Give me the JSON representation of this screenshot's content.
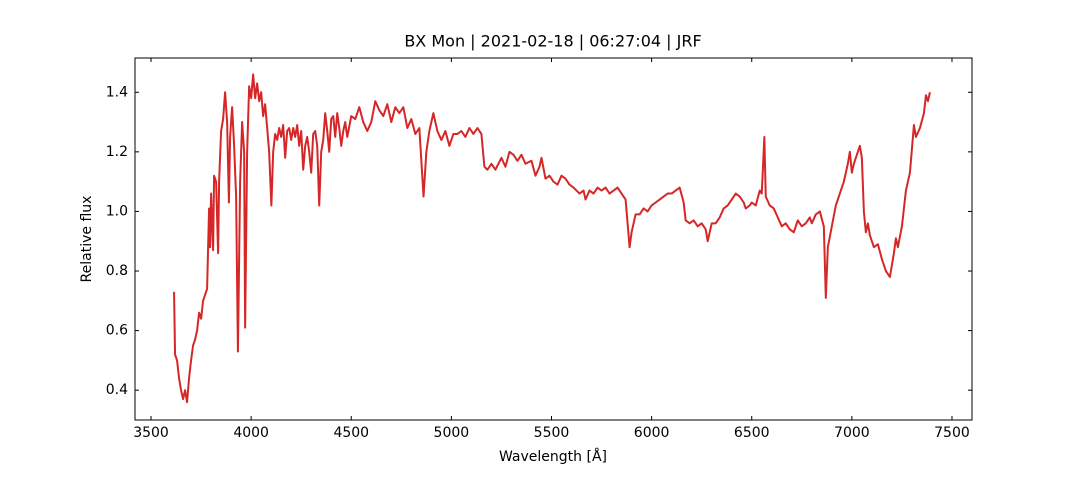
{
  "chart_data": {
    "type": "line",
    "title": "BX Mon | 2021-02-18 | 06:27:04 | JRF",
    "xlabel": "Wavelength [Å]",
    "ylabel": "Relative flux",
    "color": "#d62728",
    "xlim": [
      3420,
      7600
    ],
    "ylim": [
      0.3,
      1.515
    ],
    "xticks": [
      3500,
      4000,
      4500,
      5000,
      5500,
      6000,
      6500,
      7000,
      7500
    ],
    "yticks": [
      0.4,
      0.6,
      0.8,
      {
        "value": 1,
        "label": "1.0"
      },
      1.2,
      1.4
    ],
    "grid": false,
    "x": [
      3615,
      3620,
      3630,
      3640,
      3650,
      3660,
      3670,
      3680,
      3690,
      3700,
      3710,
      3720,
      3730,
      3740,
      3750,
      3760,
      3770,
      3780,
      3790,
      3795,
      3800,
      3810,
      3815,
      3825,
      3835,
      3840,
      3850,
      3860,
      3870,
      3880,
      3889,
      3895,
      3905,
      3915,
      3925,
      3934,
      3945,
      3955,
      3965,
      3970,
      3980,
      3990,
      4000,
      4010,
      4020,
      4030,
      4040,
      4050,
      4060,
      4070,
      4080,
      4090,
      4101,
      4110,
      4120,
      4130,
      4140,
      4150,
      4160,
      4170,
      4180,
      4190,
      4200,
      4210,
      4220,
      4230,
      4240,
      4250,
      4260,
      4270,
      4280,
      4290,
      4300,
      4310,
      4320,
      4330,
      4340,
      4350,
      4360,
      4370,
      4380,
      4390,
      4400,
      4410,
      4420,
      4430,
      4440,
      4450,
      4460,
      4470,
      4480,
      4500,
      4520,
      4540,
      4560,
      4580,
      4600,
      4620,
      4640,
      4660,
      4680,
      4700,
      4720,
      4740,
      4760,
      4780,
      4800,
      4820,
      4840,
      4861,
      4875,
      4890,
      4910,
      4930,
      4950,
      4970,
      4990,
      5010,
      5030,
      5050,
      5070,
      5090,
      5110,
      5130,
      5150,
      5165,
      5180,
      5200,
      5220,
      5250,
      5270,
      5290,
      5310,
      5330,
      5350,
      5370,
      5400,
      5420,
      5440,
      5450,
      5470,
      5490,
      5510,
      5530,
      5550,
      5570,
      5590,
      5610,
      5640,
      5660,
      5670,
      5690,
      5710,
      5730,
      5750,
      5770,
      5790,
      5810,
      5830,
      5850,
      5870,
      5890,
      5900,
      5920,
      5940,
      5960,
      5980,
      6000,
      6020,
      6040,
      6060,
      6080,
      6100,
      6120,
      6140,
      6160,
      6170,
      6190,
      6210,
      6230,
      6250,
      6270,
      6280,
      6300,
      6320,
      6340,
      6360,
      6380,
      6400,
      6420,
      6440,
      6460,
      6470,
      6490,
      6500,
      6520,
      6540,
      6550,
      6563,
      6570,
      6590,
      6610,
      6630,
      6650,
      6670,
      6690,
      6710,
      6730,
      6750,
      6770,
      6790,
      6800,
      6820,
      6840,
      6860,
      6870,
      6880,
      6900,
      6920,
      6940,
      6960,
      6980,
      6990,
      7000,
      7010,
      7030,
      7040,
      7050,
      7060,
      7070,
      7080,
      7090,
      7100,
      7110,
      7130,
      7150,
      7170,
      7190,
      7210,
      7220,
      7230,
      7250,
      7270,
      7290,
      7300,
      7310,
      7320,
      7340,
      7360,
      7370,
      7380,
      7390
    ],
    "values": [
      0.73,
      0.52,
      0.5,
      0.44,
      0.4,
      0.37,
      0.4,
      0.36,
      0.44,
      0.5,
      0.55,
      0.57,
      0.6,
      0.66,
      0.64,
      0.7,
      0.72,
      0.74,
      1.01,
      0.88,
      1.06,
      0.87,
      1.12,
      1.1,
      0.86,
      1.1,
      1.27,
      1.31,
      1.4,
      1.3,
      1.03,
      1.25,
      1.35,
      1.22,
      1.05,
      0.53,
      1.1,
      1.3,
      1.2,
      0.61,
      1.2,
      1.42,
      1.38,
      1.46,
      1.38,
      1.43,
      1.37,
      1.4,
      1.32,
      1.36,
      1.28,
      1.2,
      1.02,
      1.2,
      1.26,
      1.24,
      1.28,
      1.25,
      1.29,
      1.18,
      1.27,
      1.28,
      1.24,
      1.28,
      1.25,
      1.29,
      1.22,
      1.27,
      1.14,
      1.22,
      1.25,
      1.2,
      1.13,
      1.26,
      1.27,
      1.22,
      1.02,
      1.2,
      1.24,
      1.33,
      1.27,
      1.2,
      1.31,
      1.32,
      1.25,
      1.33,
      1.28,
      1.22,
      1.27,
      1.3,
      1.25,
      1.32,
      1.31,
      1.35,
      1.3,
      1.27,
      1.3,
      1.37,
      1.34,
      1.32,
      1.36,
      1.3,
      1.35,
      1.33,
      1.35,
      1.28,
      1.31,
      1.26,
      1.28,
      1.05,
      1.2,
      1.27,
      1.33,
      1.27,
      1.24,
      1.27,
      1.22,
      1.26,
      1.26,
      1.27,
      1.25,
      1.28,
      1.26,
      1.28,
      1.26,
      1.15,
      1.14,
      1.16,
      1.14,
      1.18,
      1.15,
      1.2,
      1.19,
      1.17,
      1.19,
      1.16,
      1.17,
      1.12,
      1.15,
      1.18,
      1.11,
      1.12,
      1.1,
      1.09,
      1.12,
      1.11,
      1.09,
      1.08,
      1.06,
      1.07,
      1.04,
      1.07,
      1.06,
      1.08,
      1.07,
      1.08,
      1.06,
      1.07,
      1.08,
      1.06,
      1.04,
      0.88,
      0.93,
      0.99,
      0.99,
      1.01,
      1.0,
      1.02,
      1.03,
      1.04,
      1.05,
      1.06,
      1.06,
      1.07,
      1.08,
      1.03,
      0.97,
      0.96,
      0.97,
      0.95,
      0.96,
      0.94,
      0.9,
      0.96,
      0.96,
      0.98,
      1.01,
      1.02,
      1.04,
      1.06,
      1.05,
      1.03,
      1.01,
      1.02,
      1.03,
      1.02,
      1.07,
      1.06,
      1.25,
      1.05,
      1.02,
      1.01,
      0.98,
      0.95,
      0.96,
      0.94,
      0.93,
      0.97,
      0.95,
      0.96,
      0.98,
      0.96,
      0.99,
      1.0,
      0.95,
      0.71,
      0.88,
      0.95,
      1.02,
      1.06,
      1.1,
      1.16,
      1.2,
      1.13,
      1.16,
      1.2,
      1.22,
      1.18,
      1.0,
      0.93,
      0.96,
      0.92,
      0.9,
      0.88,
      0.89,
      0.84,
      0.8,
      0.78,
      0.86,
      0.91,
      0.88,
      0.95,
      1.07,
      1.13,
      1.21,
      1.29,
      1.25,
      1.28,
      1.33,
      1.39,
      1.37,
      1.4
    ]
  }
}
